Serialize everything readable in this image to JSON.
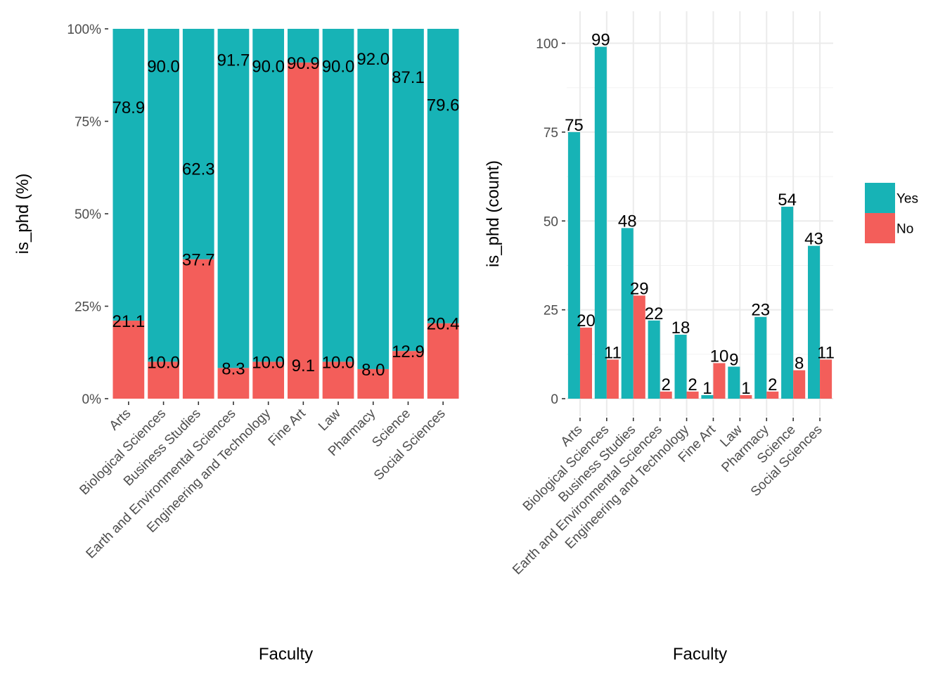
{
  "chart_data": [
    {
      "type": "bar",
      "stacked": true,
      "position": "fill",
      "categories": [
        "Arts",
        "Biological Sciences",
        "Business Studies",
        "Earth and Environmental Sciences",
        "Engineering and Technology",
        "Fine Art",
        "Law",
        "Pharmacy",
        "Science",
        "Social Sciences"
      ],
      "series": [
        {
          "name": "Yes",
          "color": "#17b3b6",
          "values": [
            78.9,
            90.0,
            62.3,
            91.7,
            90.0,
            9.1,
            90.0,
            92.0,
            87.1,
            79.6
          ],
          "labels": [
            "78.9",
            "90.0",
            "62.3",
            "91.7",
            "90.0",
            "9.1",
            "90.0",
            "92.0",
            "87.1",
            "79.6"
          ]
        },
        {
          "name": "No",
          "color": "#f35e5a",
          "values": [
            21.1,
            10.0,
            37.7,
            8.3,
            10.0,
            90.9,
            10.0,
            8.0,
            12.9,
            20.4
          ],
          "labels": [
            "21.1",
            "10.0",
            "37.7",
            "8.3",
            "10.0",
            "90.9",
            "10.0",
            "8.0",
            "12.9",
            "20.4"
          ]
        }
      ],
      "xlabel": "Faculty",
      "ylabel": "is_phd  (%)",
      "ylim": [
        0,
        100
      ],
      "yticks": [
        0,
        25,
        50,
        75,
        100
      ],
      "ytick_labels": [
        "0%",
        "25%",
        "50%",
        "75%",
        "100%"
      ],
      "grid": false
    },
    {
      "type": "bar",
      "stacked": false,
      "position": "dodge",
      "categories": [
        "Arts",
        "Biological Sciences",
        "Business Studies",
        "Earth and Environmental Sciences",
        "Engineering and Technology",
        "Fine Art",
        "Law",
        "Pharmacy",
        "Science",
        "Social Sciences"
      ],
      "series": [
        {
          "name": "Yes",
          "color": "#17b3b6",
          "values": [
            75,
            99,
            48,
            22,
            18,
            1,
            9,
            23,
            54,
            43
          ],
          "labels": [
            "75",
            "99",
            "48",
            "22",
            "18",
            "1",
            "9",
            "23",
            "54",
            "43"
          ]
        },
        {
          "name": "No",
          "color": "#f35e5a",
          "values": [
            20,
            11,
            29,
            2,
            2,
            10,
            1,
            2,
            8,
            11
          ],
          "labels": [
            "20",
            "11",
            "29",
            "2",
            "2",
            "10",
            "1",
            "2",
            "8",
            "11"
          ]
        }
      ],
      "xlabel": "Faculty",
      "ylabel": "is_phd  (count)",
      "ylim": [
        0,
        104
      ],
      "yticks": [
        0,
        25,
        50,
        75,
        100
      ],
      "ytick_labels": [
        "0",
        "25",
        "50",
        "75",
        "100"
      ],
      "grid": true,
      "legend": {
        "placement": "right",
        "entries": [
          "Yes",
          "No"
        ]
      }
    }
  ]
}
